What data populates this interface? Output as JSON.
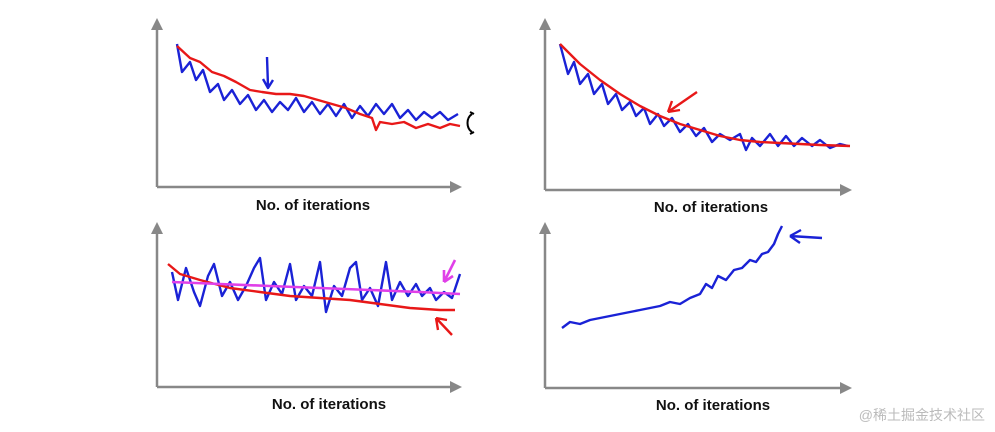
{
  "panels": [
    {
      "xlabel": "No. of iterations"
    },
    {
      "xlabel": "No. of iterations"
    },
    {
      "xlabel": "No. of iterations"
    },
    {
      "xlabel": "No. of iterations"
    }
  ],
  "watermark": "@稀土掘金技术社区"
}
